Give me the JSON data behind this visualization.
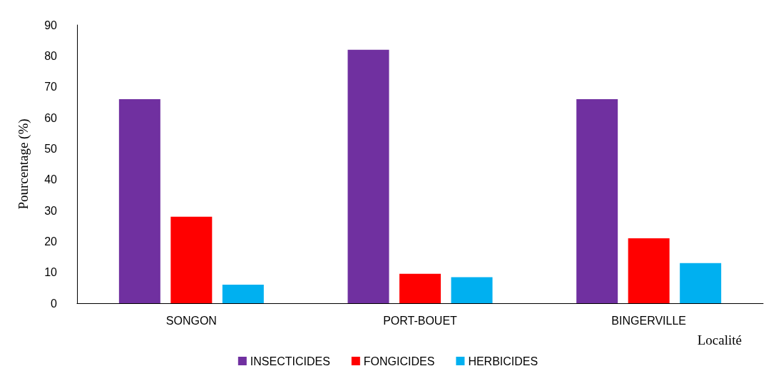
{
  "chart_data": {
    "type": "bar",
    "xlabel": "Localité",
    "ylabel": "Pourcentage (%)",
    "categories": [
      "SONGON",
      "PORT-BOUET",
      "BINGERVILLE"
    ],
    "series": [
      {
        "name": "INSECTICIDES",
        "color": "#7030a0",
        "values": [
          66,
          82,
          66
        ]
      },
      {
        "name": "FONGICIDES",
        "color": "#ff0000",
        "values": [
          28,
          9.5,
          21
        ]
      },
      {
        "name": "HERBICIDES",
        "color": "#00b0f0",
        "values": [
          6,
          8.4,
          13
        ]
      }
    ],
    "ylim": [
      0,
      90
    ],
    "yticks": [
      0,
      10,
      20,
      30,
      40,
      50,
      60,
      70,
      80,
      90
    ],
    "grid": false,
    "legend": "bottom"
  }
}
